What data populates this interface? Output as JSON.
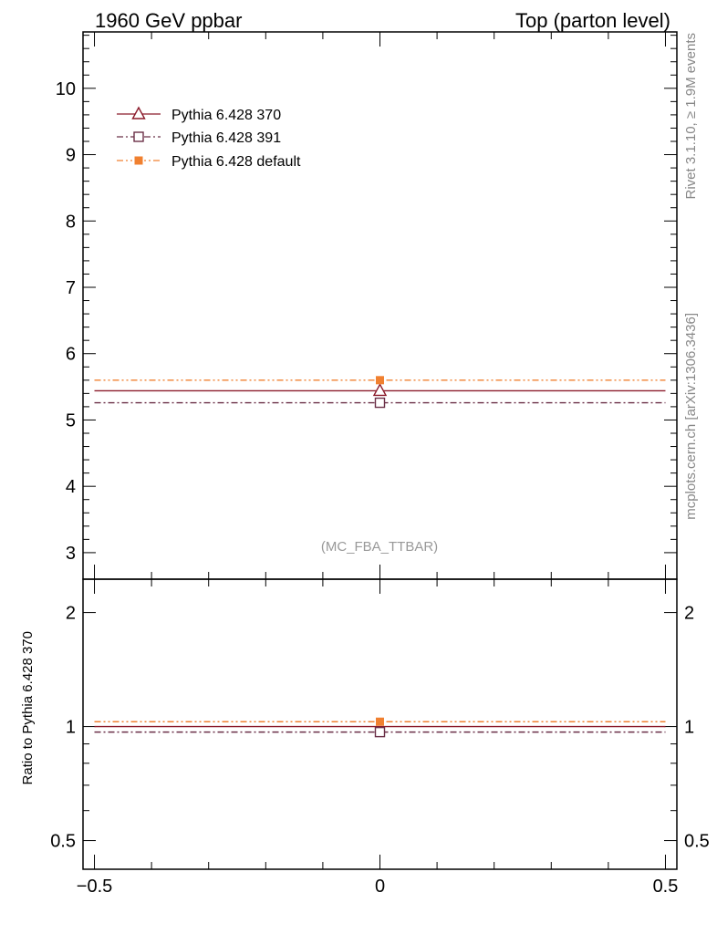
{
  "header": {
    "left_label": "1960 GeV ppbar",
    "right_label": "Top (parton level)"
  },
  "side_labels": {
    "rivet": "Rivet 3.1.10, ≥ 1.9M events",
    "mcplots": "mcplots.cern.ch [arXiv:1306.3436]"
  },
  "watermark": "(MC_FBA_TTBAR)",
  "chart_data": [
    {
      "type": "line",
      "panel": "main",
      "x_range": [
        -0.5,
        0.5
      ],
      "xlim": [
        -0.52,
        0.52
      ],
      "ylim": [
        2.6,
        10.85
      ],
      "y_ticks_major": [
        3,
        4,
        5,
        6,
        7,
        8,
        9,
        10
      ],
      "y_tick_labels": [
        "3",
        "4",
        "5",
        "6",
        "7",
        "8",
        "9",
        "10"
      ],
      "legend": {
        "placement": "top-left"
      },
      "series": [
        {
          "name": "Pythia 6.428 370",
          "value": 5.44,
          "color": "#8b1a2a",
          "marker": "open-triangle",
          "dash": "solid"
        },
        {
          "name": "Pythia 6.428 391",
          "value": 5.26,
          "color": "#6b3048",
          "marker": "open-square",
          "dash": "dash-dot"
        },
        {
          "name": "Pythia 6.428 default",
          "value": 5.6,
          "color": "#f08030",
          "marker": "filled-square",
          "dash": "dash-dot-dot"
        }
      ]
    },
    {
      "type": "line",
      "panel": "ratio",
      "ylabel": "Ratio to Pythia 6.428 370",
      "scale": "log",
      "xlim": [
        -0.52,
        0.52
      ],
      "ylim": [
        0.42,
        2.45
      ],
      "y_ticks_major": [
        0.5,
        1,
        2
      ],
      "y_tick_labels": [
        "0.5",
        "1",
        "2"
      ],
      "x_ticks_major": [
        -0.5,
        0,
        0.5
      ],
      "x_tick_labels": [
        "−0.5",
        "0",
        "0.5"
      ],
      "series": [
        {
          "name": "Pythia 6.428 370",
          "value": 1.0,
          "color": "#8b1a2a",
          "dash": "solid"
        },
        {
          "name": "Pythia 6.428 391",
          "value": 0.967,
          "color": "#6b3048",
          "dash": "dash-dot",
          "marker": "open-square"
        },
        {
          "name": "Pythia 6.428 default",
          "value": 1.03,
          "color": "#f08030",
          "dash": "dash-dot-dot",
          "marker": "filled-square"
        }
      ]
    }
  ]
}
